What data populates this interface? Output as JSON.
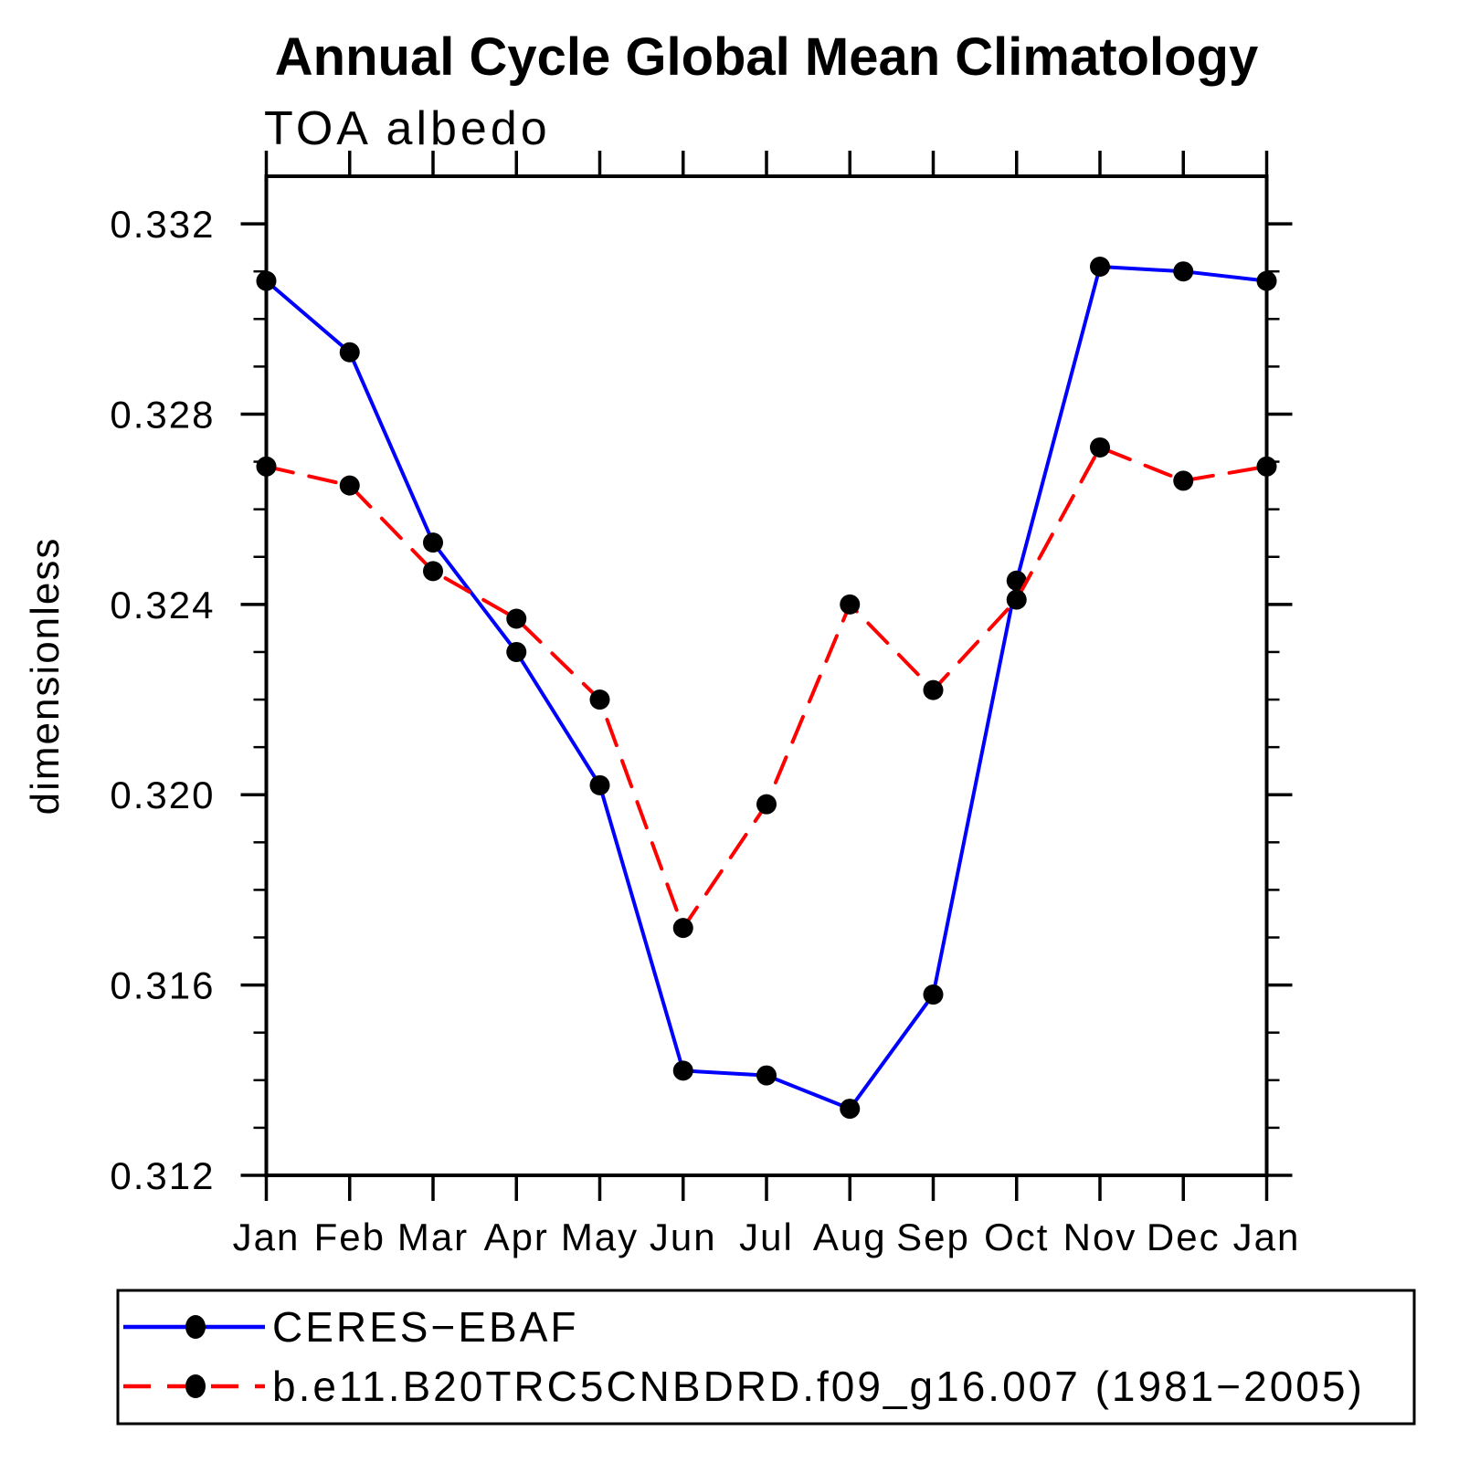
{
  "chart_data": {
    "type": "line",
    "title": "Annual Cycle Global Mean Climatology",
    "subtitle": "TOA albedo",
    "ylabel": "dimensionless",
    "categories": [
      "Jan",
      "Feb",
      "Mar",
      "Apr",
      "May",
      "Jun",
      "Jul",
      "Aug",
      "Sep",
      "Oct",
      "Nov",
      "Dec",
      "Jan"
    ],
    "ylim": [
      0.312,
      0.333
    ],
    "ytick_major": [
      0.312,
      0.316,
      0.32,
      0.324,
      0.328,
      0.332
    ],
    "ytick_labels": [
      "0.312",
      "0.316",
      "0.320",
      "0.324",
      "0.328",
      "0.332"
    ],
    "ytick_minor_step": 0.001,
    "grid": false,
    "legend_position": "bottom-left-box",
    "background_color": "#ffffff",
    "axis_color": "#000000",
    "marker_color": "#000000",
    "series": [
      {
        "name": "CERES−EBAF",
        "color": "#0000ff",
        "dash": "solid",
        "marker": "circle",
        "values": [
          0.3308,
          0.3293,
          0.3253,
          0.323,
          0.3202,
          0.3142,
          0.3141,
          0.3134,
          0.3158,
          0.3245,
          0.3311,
          0.331,
          0.3308
        ]
      },
      {
        "name": "b.e11.B20TRC5CNBDRD.f09_g16.007 (1981−2005)",
        "color": "#ff0000",
        "dash": "dashed",
        "marker": "circle",
        "values": [
          0.3269,
          0.3265,
          0.3247,
          0.3237,
          0.322,
          0.3172,
          0.3198,
          0.324,
          0.3222,
          0.3241,
          0.3273,
          0.3266,
          0.3269
        ]
      }
    ]
  }
}
